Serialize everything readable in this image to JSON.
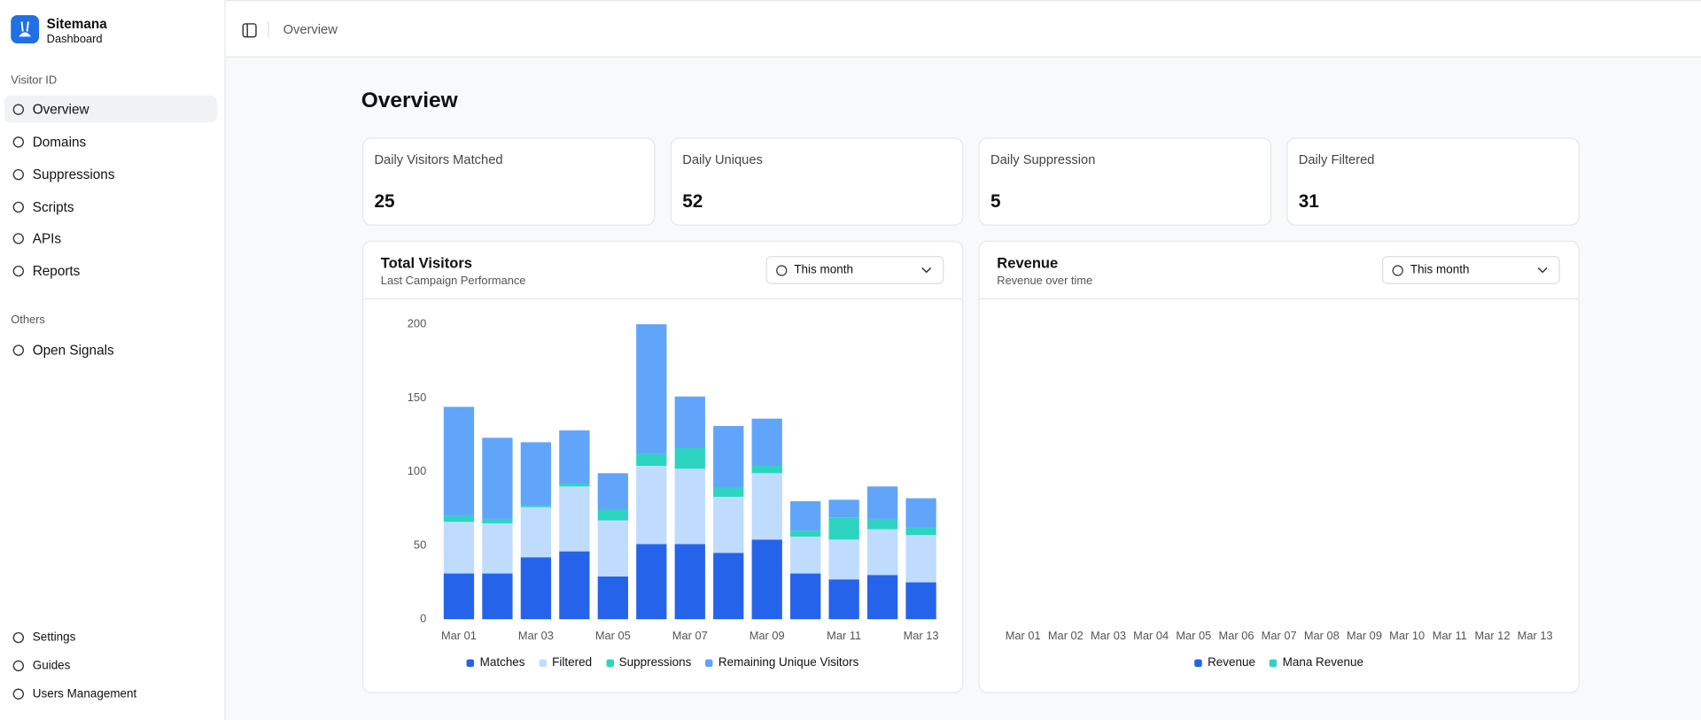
{
  "sidebar": {
    "brand": "Sitemana",
    "subtitle": "Dashboard",
    "sections": [
      {
        "heading": "Visitor ID",
        "items": [
          "Overview",
          "Domains",
          "Suppressions",
          "Scripts",
          "APIs",
          "Reports"
        ]
      },
      {
        "heading": "Others",
        "items": [
          "Open Signals"
        ]
      }
    ],
    "footer": [
      "Settings",
      "Guides",
      "Users Management"
    ]
  },
  "topbar": {
    "breadcrumb": "Overview"
  },
  "page_title": "Overview",
  "kpis": [
    {
      "label": "Daily Visitors Matched",
      "value": 25
    },
    {
      "label": "Daily Uniques",
      "value": 52
    },
    {
      "label": "Daily Suppression",
      "value": 5
    },
    {
      "label": "Daily Filtered",
      "value": 31
    }
  ],
  "chart_data": [
    {
      "type": "stacked_bar",
      "title": "Total Visitors",
      "subtitle": "Last Campaign Performance",
      "range": "This month",
      "categories": [
        "Mar 01",
        null,
        "Mar 03",
        null,
        "Mar 05",
        null,
        "Mar 07",
        null,
        "Mar 09",
        null,
        "Mar 11",
        null,
        "Mar 13"
      ],
      "series": [
        {
          "name": "Matches",
          "color": "#2563eb",
          "values": [
            31,
            31,
            42,
            46,
            29,
            51,
            51,
            45,
            54,
            31,
            27,
            30,
            25
          ]
        },
        {
          "name": "Filtered",
          "color": "#bfdbfe",
          "values": [
            35,
            34,
            34,
            44,
            38,
            53,
            51,
            38,
            45,
            25,
            27,
            31,
            32
          ]
        },
        {
          "name": "Suppressions",
          "color": "#2dd4bf",
          "values": [
            4,
            3,
            1,
            2,
            7,
            8,
            14,
            6,
            5,
            4,
            15,
            7,
            5
          ]
        },
        {
          "name": "Remaining Unique Visitors",
          "color": "#60a5fa",
          "values": [
            74,
            55,
            43,
            36,
            25,
            88,
            35,
            42,
            32,
            20,
            12,
            22,
            20
          ]
        }
      ],
      "ylim": [
        0,
        200
      ],
      "yticks": [
        0,
        50,
        100,
        150,
        200
      ],
      "grid": true
    },
    {
      "type": "line",
      "title": "Revenue",
      "subtitle": "Revenue over time",
      "range": "This month",
      "categories": [
        "Mar 01",
        "Mar 02",
        "Mar 03",
        "Mar 04",
        "Mar 05",
        "Mar 06",
        "Mar 07",
        "Mar 08",
        "Mar 09",
        "Mar 10",
        "Mar 11",
        "Mar 12",
        "Mar 13"
      ],
      "series": [
        {
          "name": "Revenue",
          "color": "#2563eb"
        },
        {
          "name": "Mana Revenue",
          "color": "#2dd4bf"
        }
      ]
    }
  ]
}
